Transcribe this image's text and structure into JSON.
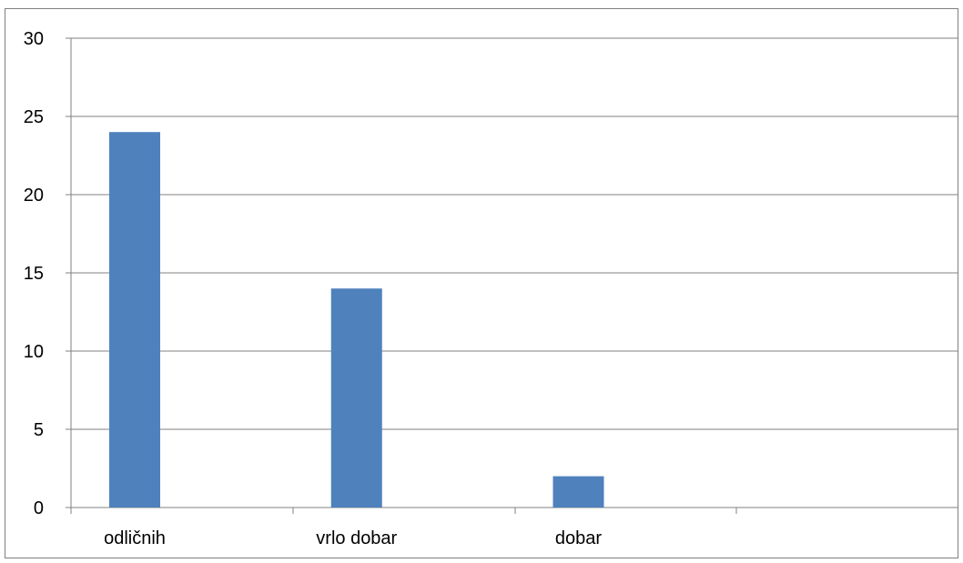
{
  "chart_data": {
    "type": "bar",
    "title": "",
    "xlabel": "",
    "ylabel": "",
    "categories": [
      "odličnih",
      "vrlo dobar",
      "dobar",
      ""
    ],
    "values": [
      24,
      14,
      2,
      null
    ],
    "ylim": [
      0,
      30
    ],
    "yticks": [
      0,
      5,
      10,
      15,
      20,
      25,
      30
    ],
    "grid": true,
    "legend": "none",
    "colors": {
      "bar": "#4F81BD",
      "grid": "#808080",
      "axis": "#808080",
      "text": "#000000"
    }
  }
}
